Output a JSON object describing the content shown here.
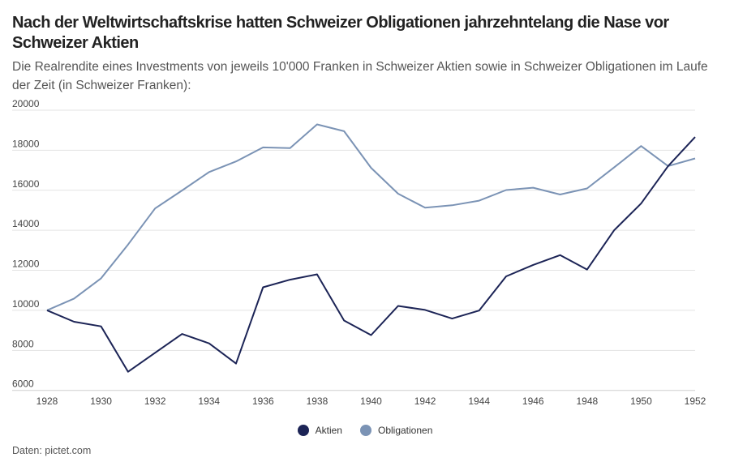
{
  "chart_data": {
    "type": "line",
    "title": "Nach der Weltwirtschaftskrise hatten Schweizer Obligationen jahrzehntelang die Nase vor Schweizer Aktien",
    "subtitle": "Die Realrendite eines Investments von jeweils 10'000 Franken in Schweizer Aktien sowie in Schweizer Obligationen im Laufe der Zeit (in Schweizer Franken):",
    "x": [
      1928,
      1929,
      1930,
      1931,
      1932,
      1933,
      1934,
      1935,
      1936,
      1937,
      1938,
      1939,
      1940,
      1941,
      1942,
      1943,
      1944,
      1945,
      1946,
      1947,
      1948,
      1949,
      1950,
      1951,
      1952
    ],
    "x_ticks": [
      "1928",
      "1930",
      "1932",
      "1934",
      "1936",
      "1938",
      "1940",
      "1942",
      "1944",
      "1946",
      "1948",
      "1950",
      "1952"
    ],
    "y_ticks": [
      "6000",
      "8000",
      "10000",
      "12000",
      "14000",
      "16000",
      "18000",
      "20000"
    ],
    "xlim": [
      1928,
      1952
    ],
    "ylim": [
      6000,
      20000
    ],
    "grid": "horizontal",
    "legend_position": "bottom",
    "series": [
      {
        "name": "Aktien",
        "color": "#1c2456",
        "values": [
          10000,
          9430,
          9200,
          6930,
          7880,
          8820,
          8350,
          7340,
          11150,
          11530,
          11800,
          9490,
          8760,
          10220,
          10020,
          9590,
          9990,
          11700,
          12270,
          12760,
          12040,
          14000,
          15340,
          17210,
          18660
        ]
      },
      {
        "name": "Obligationen",
        "color": "#7b93b5",
        "values": [
          10000,
          10590,
          11600,
          13290,
          15090,
          15990,
          16910,
          17440,
          18140,
          18110,
          19290,
          18950,
          17120,
          15830,
          15130,
          15250,
          15480,
          16010,
          16130,
          15790,
          16090,
          17140,
          18210,
          17210,
          17590
        ]
      }
    ]
  },
  "source": "Daten: pictet.com"
}
